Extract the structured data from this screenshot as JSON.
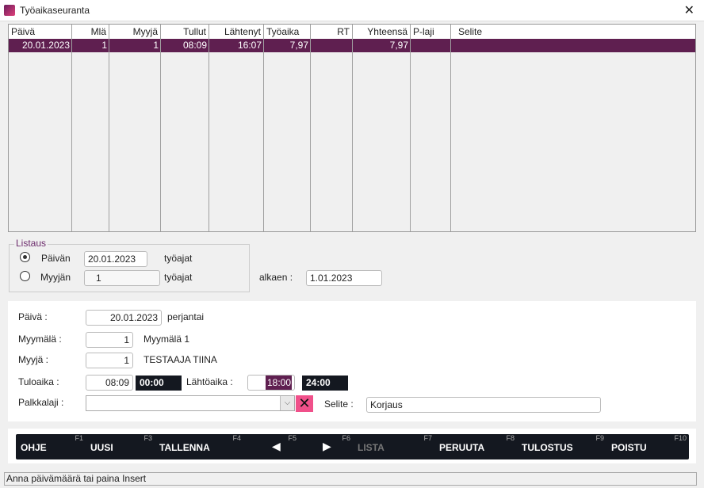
{
  "window": {
    "title": "Työaikaseuranta",
    "close_icon": "close-icon"
  },
  "grid": {
    "columns": [
      "Päivä",
      "Mlä",
      "Myyjä",
      "Tullut",
      "Lähtenyt",
      "Työaika",
      "RT",
      "Yhteensä",
      "P-laji",
      "Selite"
    ],
    "rows": [
      [
        "20.01.2023",
        "1",
        "1",
        "08:09",
        "16:07",
        "7,97",
        "",
        "7,97",
        "",
        ""
      ]
    ],
    "selected_row_color": "#5f1f50"
  },
  "listaus": {
    "title": "Listaus",
    "day_label": "Päivän",
    "day_value": "20.01.2023",
    "day_suffix": "työajat",
    "seller_label": "Myyjän",
    "seller_value": "1",
    "seller_suffix": "työajat",
    "from_label": "alkaen :",
    "from_value": "1.01.2023",
    "selected": "day"
  },
  "form": {
    "date_label": "Päivä :",
    "date_value": "20.01.2023",
    "weekday": "perjantai",
    "store_label": "Myymälä :",
    "store_value": "1",
    "store_name": "Myymälä 1",
    "seller_label": "Myyjä :",
    "seller_value": "1",
    "seller_name": "TESTAAJA TIINA",
    "arrival_label": "Tuloaika :",
    "arrival_value": "08:09",
    "arrival_box": "00:00",
    "departure_label": "Lähtöaika :",
    "departure_value": "18:00",
    "departure_box": "24:00",
    "paytype_label": "Palkkalaji :",
    "paytype_value": "",
    "note_label": "Selite :",
    "note_value": "Korjaus"
  },
  "buttons": [
    {
      "label": "OHJE",
      "key": "F1"
    },
    {
      "label": "UUSI",
      "key": "F3"
    },
    {
      "label": "TALLENNA",
      "key": "F4"
    },
    {
      "label": "◀",
      "key": "F5"
    },
    {
      "label": "▶",
      "key": "F6"
    },
    {
      "label": "LISTA",
      "key": "F7",
      "disabled": true
    },
    {
      "label": "PERUUTA",
      "key": "F8"
    },
    {
      "label": "TULOSTUS",
      "key": "F9"
    },
    {
      "label": "POISTU",
      "key": "F10"
    }
  ],
  "status": "Anna päivämäärä tai paina Insert"
}
